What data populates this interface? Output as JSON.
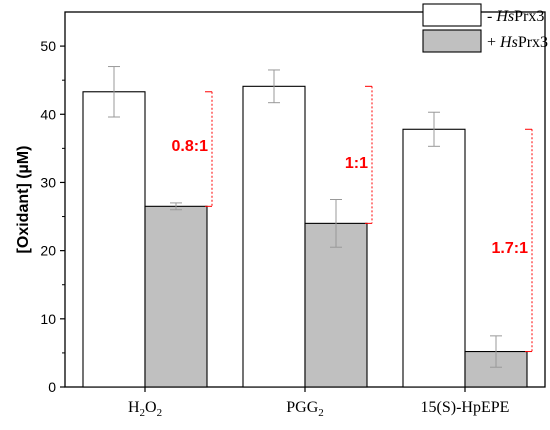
{
  "chart_data": {
    "type": "bar",
    "categories": [
      {
        "base": "H",
        "sub1": "2",
        "mid": "O",
        "sub2": "2",
        "label": "H2O2"
      },
      {
        "base": "PGG",
        "sub1": "2",
        "mid": "",
        "sub2": "",
        "label": "PGG2"
      },
      {
        "base": "15(S)-HpEPE",
        "sub1": "",
        "mid": "",
        "sub2": "",
        "label": "15(S)-HpEPE"
      }
    ],
    "series": [
      {
        "name_prefix": "- ",
        "name_italic": "Hs",
        "name_suffix": "Prx3",
        "values": [
          43.3,
          44.1,
          37.8
        ],
        "errors": [
          3.7,
          2.4,
          2.5
        ],
        "color": "#ffffff"
      },
      {
        "name_prefix": "+ ",
        "name_italic": "Hs",
        "name_suffix": "Prx3",
        "values": [
          26.5,
          24.0,
          5.2
        ],
        "errors": [
          0.5,
          3.5,
          2.3
        ],
        "color": "#c0c0c0"
      }
    ],
    "ratios": [
      "0.8:1",
      "1:1",
      "1.7:1"
    ],
    "ratio_label_y": [
      35.5,
      33.0,
      20.5
    ],
    "ratio_color": "#ff0000",
    "ylabel": "[Oxidant] (µM)",
    "ylim": [
      0,
      55
    ],
    "yticks": [
      0,
      10,
      20,
      30,
      40,
      50
    ],
    "legend_position": "top-right",
    "grid": false
  }
}
